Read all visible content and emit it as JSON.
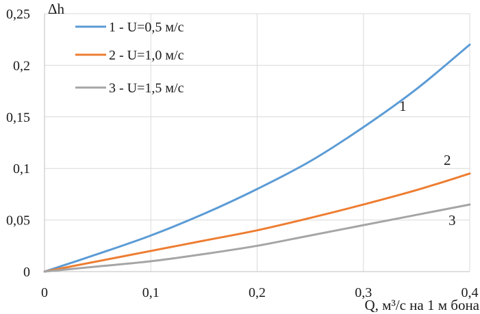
{
  "chart_data": {
    "type": "line",
    "title": "",
    "xlabel": "Q, м³/с на 1 м бона",
    "ylabel": "Δh",
    "xlim": [
      0,
      0.4
    ],
    "ylim": [
      0,
      0.25
    ],
    "x_ticks": [
      "0",
      "0,1",
      "0,2",
      "0,3",
      "0,4"
    ],
    "y_ticks": [
      "0",
      "0,05",
      "0,1",
      "0,15",
      "0,2",
      "0,25"
    ],
    "grid": true,
    "legend_position": "top-left",
    "series": [
      {
        "name": "1 - U=0,5 м/с",
        "curve_label": "1",
        "color": "#5b9bd5",
        "x": [
          0,
          0.05,
          0.1,
          0.15,
          0.2,
          0.25,
          0.3,
          0.35,
          0.4
        ],
        "y": [
          0,
          0.017,
          0.035,
          0.056,
          0.08,
          0.107,
          0.14,
          0.177,
          0.22
        ]
      },
      {
        "name": "2 - U=1,0 м/с",
        "curve_label": "2",
        "color": "#ed7d31",
        "x": [
          0,
          0.05,
          0.1,
          0.15,
          0.2,
          0.25,
          0.3,
          0.35,
          0.4
        ],
        "y": [
          0,
          0.01,
          0.02,
          0.03,
          0.04,
          0.052,
          0.065,
          0.079,
          0.095
        ]
      },
      {
        "name": "3 - U=1,5 м/с",
        "curve_label": "3",
        "color": "#a5a5a5",
        "x": [
          0,
          0.05,
          0.1,
          0.15,
          0.2,
          0.25,
          0.3,
          0.35,
          0.4
        ],
        "y": [
          0,
          0.005,
          0.01,
          0.017,
          0.025,
          0.035,
          0.045,
          0.055,
          0.065
        ]
      }
    ]
  }
}
